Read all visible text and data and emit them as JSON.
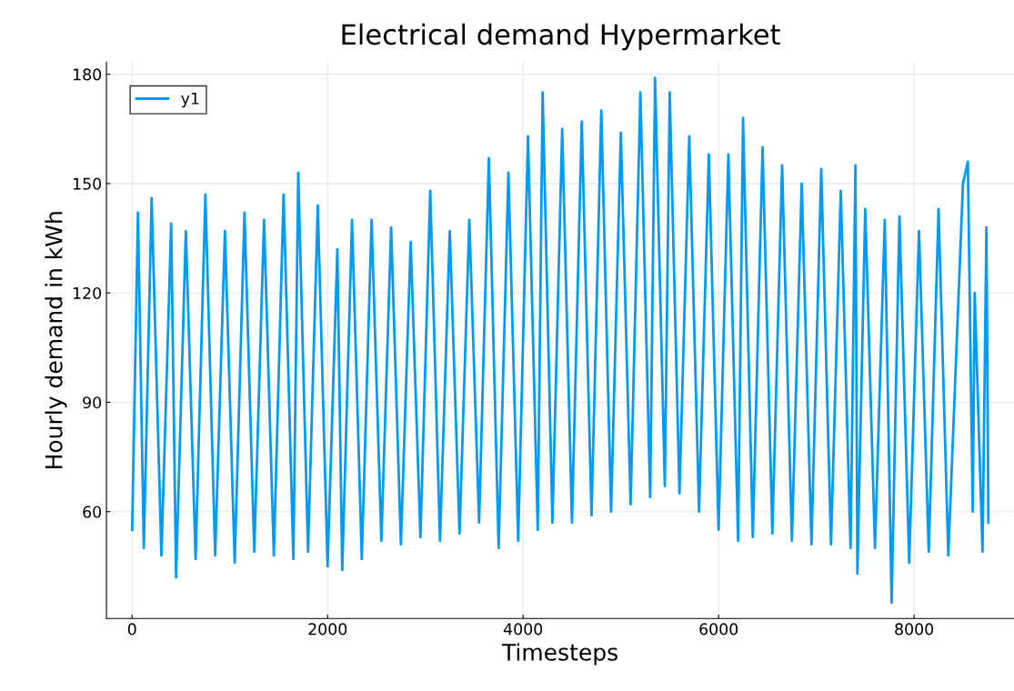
{
  "chart_data": {
    "type": "line",
    "title": "Electrical demand Hypermarket",
    "xlabel": "Timesteps",
    "ylabel": "Hourly demand in kWh",
    "xlim": [
      -262,
      9022
    ],
    "ylim": [
      30.7,
      183.3
    ],
    "xticks": [
      0,
      2000,
      4000,
      6000,
      8000
    ],
    "yticks": [
      60,
      90,
      120,
      150,
      180
    ],
    "grid": true,
    "legend": "top left",
    "series": [
      {
        "name": "y1",
        "color": "#009af9",
        "x": [
          1,
          60,
          120,
          200,
          300,
          400,
          450,
          550,
          650,
          750,
          850,
          950,
          1050,
          1150,
          1250,
          1350,
          1450,
          1550,
          1650,
          1700,
          1800,
          1900,
          2000,
          2100,
          2150,
          2250,
          2350,
          2450,
          2550,
          2650,
          2750,
          2850,
          2950,
          3050,
          3150,
          3250,
          3350,
          3450,
          3550,
          3650,
          3750,
          3850,
          3950,
          4050,
          4150,
          4200,
          4300,
          4400,
          4500,
          4600,
          4700,
          4800,
          4900,
          5000,
          5100,
          5200,
          5300,
          5350,
          5450,
          5500,
          5600,
          5700,
          5800,
          5900,
          6000,
          6100,
          6200,
          6250,
          6350,
          6450,
          6550,
          6650,
          6750,
          6850,
          6950,
          7050,
          7150,
          7250,
          7350,
          7400,
          7420,
          7500,
          7600,
          7700,
          7770,
          7850,
          7950,
          8050,
          8150,
          8250,
          8350,
          8500,
          8550,
          8600,
          8620,
          8700,
          8740,
          8760
        ],
        "values": [
          55,
          142,
          50,
          146,
          48,
          139,
          42,
          137,
          47,
          147,
          48,
          137,
          46,
          142,
          49,
          140,
          48,
          147,
          47,
          153,
          49,
          144,
          45,
          132,
          44,
          140,
          47,
          140,
          52,
          138,
          51,
          134,
          53,
          148,
          52,
          137,
          54,
          140,
          57,
          157,
          50,
          153,
          52,
          163,
          55,
          175,
          57,
          165,
          57,
          167,
          59,
          170,
          60,
          164,
          62,
          175,
          64,
          179,
          67,
          175,
          65,
          163,
          60,
          158,
          55,
          158,
          52,
          168,
          53,
          160,
          54,
          155,
          52,
          150,
          51,
          154,
          51,
          148,
          50,
          155,
          43,
          143,
          50,
          140,
          35,
          141,
          46,
          137,
          49,
          143,
          48,
          150,
          156,
          60,
          120,
          49,
          138,
          57
        ]
      }
    ]
  }
}
